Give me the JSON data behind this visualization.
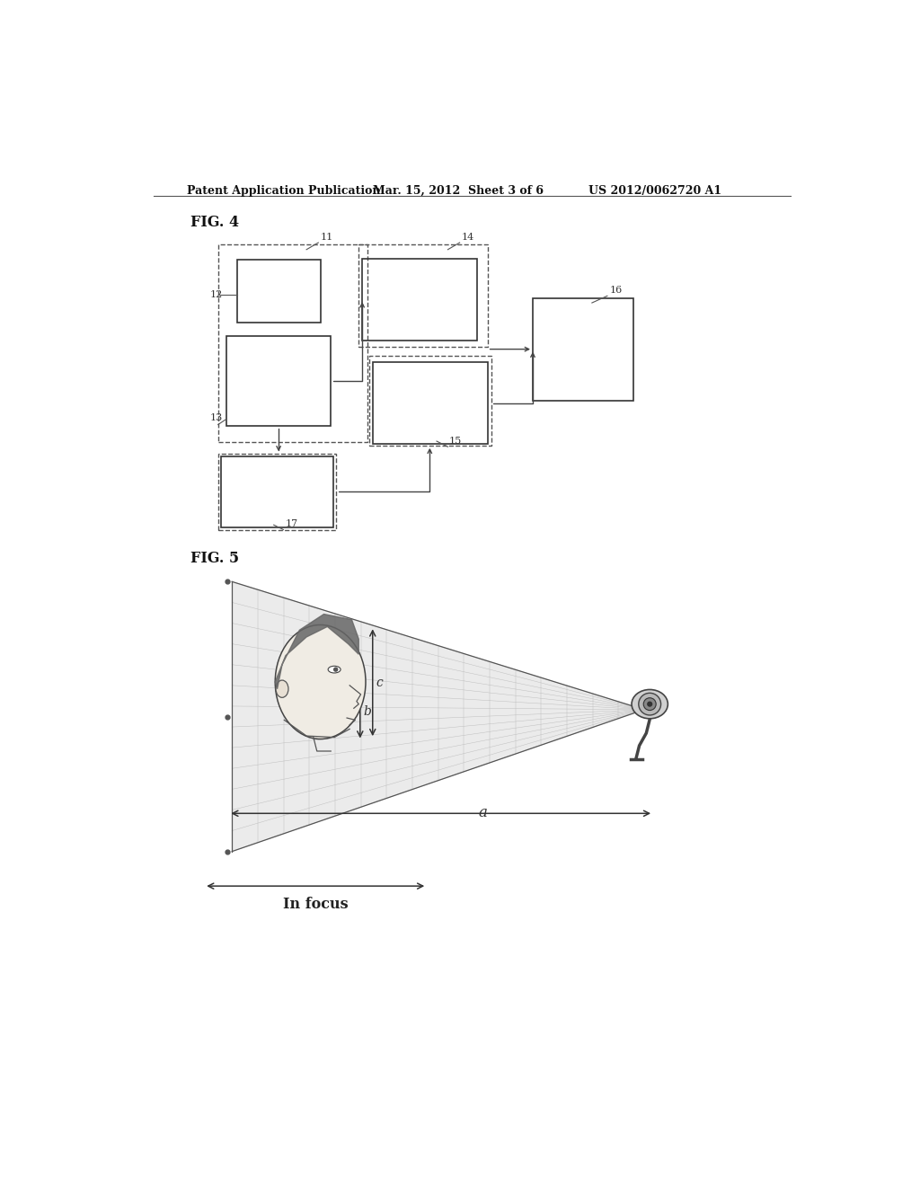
{
  "bg_color": "#ffffff",
  "header_left": "Patent Application Publication",
  "header_mid": "Mar. 15, 2012  Sheet 3 of 6",
  "header_right": "US 2012/0062720 A1",
  "fig4_label": "FIG. 4",
  "fig5_label": "FIG. 5",
  "text_color": "#222222",
  "box_solid_color": "#333333",
  "box_dash_color": "#555555",
  "arrow_color": "#444444",
  "grid_color": "#bbbbbb",
  "cone_fill": "#d8d8d8",
  "cone_alpha": 0.5
}
